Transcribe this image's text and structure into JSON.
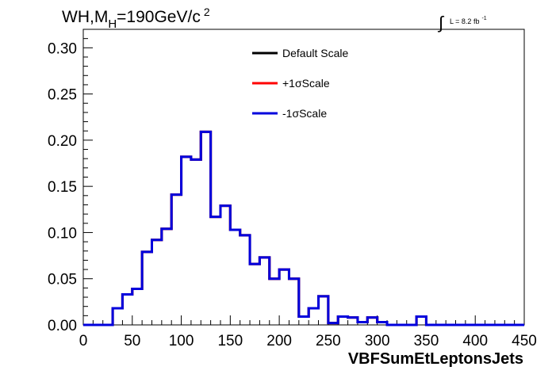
{
  "chart_data": {
    "type": "histogram",
    "title": {
      "base": "WH,M",
      "sub": "H",
      "rest": "=190GeV/c",
      "sup": "2"
    },
    "lumi": {
      "integral": "∫",
      "text": "L = 8.2 fb",
      "sup": "-1"
    },
    "xlabel": "VBFSumEtLeptonsJets",
    "ylabel": "",
    "xlim": [
      0,
      450
    ],
    "ylim": [
      0,
      0.32
    ],
    "x_ticks": [
      "0",
      "50",
      "100",
      "150",
      "200",
      "250",
      "300",
      "350",
      "400",
      "450"
    ],
    "y_ticks": [
      "0.00",
      "0.05",
      "0.10",
      "0.15",
      "0.20",
      "0.25",
      "0.30"
    ],
    "bin_edges": [
      0,
      10,
      20,
      30,
      40,
      50,
      60,
      70,
      80,
      90,
      100,
      110,
      120,
      130,
      140,
      150,
      160,
      170,
      180,
      190,
      200,
      210,
      220,
      230,
      240,
      250,
      260,
      270,
      280,
      290,
      300,
      310,
      320,
      330,
      340,
      350,
      360,
      370,
      380,
      390,
      400,
      410,
      420,
      430,
      440,
      450
    ],
    "series": [
      {
        "name": "Default Scale",
        "color": "#000000",
        "values": [
          0,
          0,
          0,
          0.018,
          0.033,
          0.039,
          0.079,
          0.092,
          0.104,
          0.141,
          0.182,
          0.179,
          0.209,
          0.117,
          0.129,
          0.103,
          0.097,
          0.066,
          0.073,
          0.05,
          0.06,
          0.05,
          0.009,
          0.018,
          0.031,
          0.002,
          0.009,
          0.008,
          0.003,
          0.008,
          0.003,
          0,
          0,
          0,
          0.009,
          0,
          0,
          0,
          0,
          0,
          0,
          0,
          0,
          0,
          0
        ]
      },
      {
        "name": "+1σScale",
        "color": "#ff0000",
        "values": [
          0,
          0,
          0,
          0.018,
          0.033,
          0.039,
          0.079,
          0.092,
          0.104,
          0.141,
          0.182,
          0.179,
          0.209,
          0.117,
          0.129,
          0.103,
          0.097,
          0.066,
          0.073,
          0.05,
          0.06,
          0.05,
          0.009,
          0.018,
          0.031,
          0.002,
          0.009,
          0.008,
          0.003,
          0.008,
          0.003,
          0,
          0,
          0,
          0.009,
          0,
          0,
          0,
          0,
          0,
          0,
          0,
          0,
          0,
          0
        ]
      },
      {
        "name": "-1σScale",
        "color": "#0000dd",
        "values": [
          0,
          0,
          0,
          0.018,
          0.033,
          0.039,
          0.079,
          0.092,
          0.104,
          0.141,
          0.182,
          0.179,
          0.209,
          0.117,
          0.129,
          0.103,
          0.097,
          0.066,
          0.073,
          0.05,
          0.06,
          0.05,
          0.009,
          0.018,
          0.031,
          0.002,
          0.009,
          0.008,
          0.003,
          0.008,
          0.003,
          0,
          0,
          0,
          0.009,
          0,
          0,
          0,
          0,
          0,
          0,
          0,
          0,
          0,
          0
        ]
      }
    ],
    "legend_position": "top-right",
    "grid": false
  }
}
